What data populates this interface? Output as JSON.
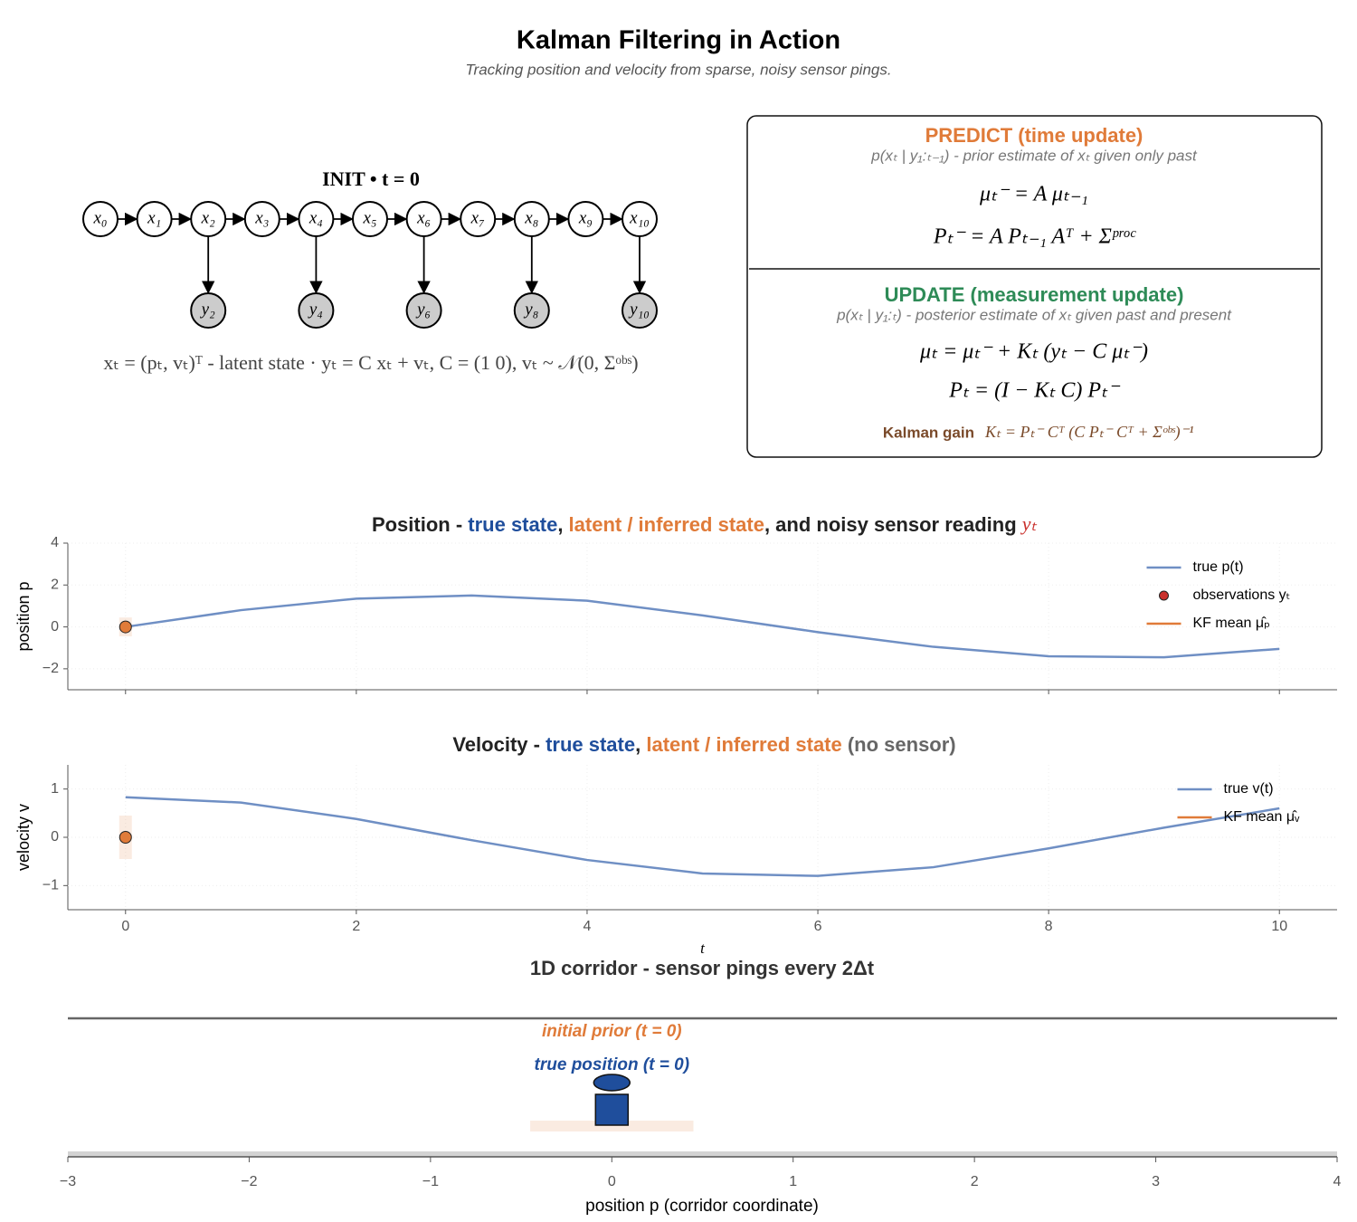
{
  "title": "Kalman Filtering in Action",
  "subtitle": "Tracking position and velocity from sparse, noisy sensor pings.",
  "diagram": {
    "header": "INIT  •  t = 0",
    "states": [
      "x₀",
      "x₁",
      "x₂",
      "x₃",
      "x₄",
      "x₅",
      "x₆",
      "x₇",
      "x₈",
      "x₉",
      "x₁₀"
    ],
    "observations": [
      "y₂",
      "y₄",
      "y₆",
      "y₈",
      "y₁₀"
    ],
    "observation_of": [
      2,
      4,
      6,
      8,
      10
    ],
    "caption": "xₜ = (pₜ, vₜ)ᵀ  -  latent state  ·  yₜ = C xₜ + vₜ,  C = (1  0),  vₜ ~ 𝒩(0, Σᵒᵇˢ)"
  },
  "equations": {
    "predict_title": "PREDICT  (time update)",
    "predict_subtitle": "p(xₜ | y₁:ₜ₋₁) - prior estimate of xₜ given only past",
    "predict_eqs": [
      "μₜ⁻ = A μₜ₋₁",
      "Pₜ⁻ = A Pₜ₋₁ Aᵀ + Σᵖʳᵒᶜ"
    ],
    "update_title": "UPDATE  (measurement update)",
    "update_subtitle": "p(xₜ | y₁:ₜ) - posterior estimate of xₜ given past and present",
    "update_eqs": [
      "μₜ = μₜ⁻ + Kₜ (yₜ − C μₜ⁻)",
      "Pₜ = (I − Kₜ C) Pₜ⁻"
    ],
    "gain_label": "Kalman gain",
    "gain_eq": "Kₜ = Pₜ⁻ Cᵀ (C Pₜ⁻ Cᵀ + Σᵒᵇˢ)⁻¹"
  },
  "chart_data": [
    {
      "type": "line",
      "title": [
        "Position  -  ",
        "true state",
        ",  ",
        "latent / inferred state",
        ",  and noisy sensor reading ",
        "yₜ"
      ],
      "title_colors": [
        "#222222",
        "#1f4e9c",
        "#222222",
        "#e07b39",
        "#222222",
        "#c9302c"
      ],
      "ylabel": "position p",
      "xlim": [
        -0.5,
        10.5
      ],
      "xticks": [
        0,
        2,
        4,
        6,
        8,
        10
      ],
      "show_xtick_labels": false,
      "ylim": [
        -3,
        4
      ],
      "yticks": [
        {
          "value": -2,
          "label": "−2"
        },
        0,
        2,
        4
      ],
      "legend": "upper right",
      "series": [
        {
          "name": "true p(t)",
          "kind": "line",
          "color": "#6f8fc4",
          "x": [
            0,
            1,
            2,
            3,
            4,
            5,
            6,
            7,
            8,
            9,
            10
          ],
          "values": [
            0,
            0.8,
            1.35,
            1.5,
            1.25,
            0.55,
            -0.25,
            -0.95,
            -1.4,
            -1.45,
            -1.05
          ]
        },
        {
          "name": "observations yₜ",
          "kind": "points",
          "color": "#c9302c",
          "x": [],
          "values": []
        },
        {
          "name": "KF mean μ̂ₚ",
          "kind": "mean",
          "color": "#e07b39",
          "x": [
            0
          ],
          "values": [
            0
          ],
          "band": [
            0.45
          ]
        }
      ]
    },
    {
      "type": "line",
      "title": [
        "Velocity  -  ",
        "true state",
        ",  ",
        "latent / inferred state",
        "   (no sensor)"
      ],
      "title_colors": [
        "#222222",
        "#1f4e9c",
        "#222222",
        "#e07b39",
        "#666666"
      ],
      "ylabel": "velocity v",
      "xlabel": "t",
      "xlim": [
        -0.5,
        10.5
      ],
      "xticks": [
        0,
        2,
        4,
        6,
        8,
        10
      ],
      "show_xtick_labels": true,
      "ylim": [
        -1.5,
        1.5
      ],
      "yticks": [
        {
          "value": -1,
          "label": "−1"
        },
        0,
        1
      ],
      "legend": "upper right",
      "series": [
        {
          "name": "true v(t)",
          "kind": "line",
          "color": "#6f8fc4",
          "x": [
            0,
            1,
            2,
            3,
            4,
            5,
            6,
            7,
            8,
            9,
            10
          ],
          "values": [
            0.83,
            0.72,
            0.38,
            -0.06,
            -0.47,
            -0.75,
            -0.8,
            -0.62,
            -0.23,
            0.2,
            0.6
          ]
        },
        {
          "name": "KF mean μ̂ᵥ",
          "kind": "mean",
          "color": "#e07b39",
          "x": [
            0
          ],
          "values": [
            0
          ],
          "band": [
            0.45
          ]
        }
      ]
    },
    {
      "type": "corridor",
      "title": "1D corridor - sensor pings every 2Δt",
      "xlabel": "position p  (corridor coordinate)",
      "xlim": [
        -3,
        4
      ],
      "xticks": [
        {
          "value": -3,
          "label": "−3"
        },
        {
          "value": -2,
          "label": "−2"
        },
        {
          "value": -1,
          "label": "−1"
        },
        0,
        1,
        2,
        3,
        4
      ],
      "true_position": 0,
      "true_label": "true position  (t = 0)",
      "true_color": "#1f4e9c",
      "prior_mean": 0,
      "prior_band": 0.45,
      "prior_label": "initial prior  (t = 0)",
      "prior_color": "#e07b39"
    }
  ]
}
